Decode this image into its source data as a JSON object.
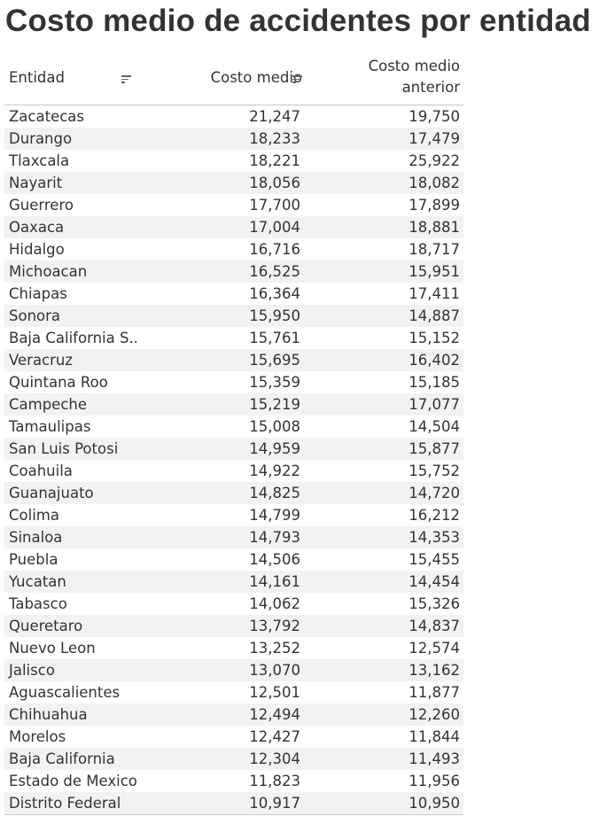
{
  "title": "Costo medio de accidentes por entidad",
  "chart_data": {
    "type": "table",
    "title": "Costo medio de accidentes por entidad",
    "columns": [
      "Entidad",
      "Costo medio",
      "Costo medio anterior"
    ],
    "sorted_by": "Costo medio",
    "sort_order": "descending",
    "rows": [
      {
        "entidad": "Zacatecas",
        "costo_medio": "21,247",
        "costo_anterior": "19,750"
      },
      {
        "entidad": "Durango",
        "costo_medio": "18,233",
        "costo_anterior": "17,479"
      },
      {
        "entidad": "Tlaxcala",
        "costo_medio": "18,221",
        "costo_anterior": "25,922"
      },
      {
        "entidad": "Nayarit",
        "costo_medio": "18,056",
        "costo_anterior": "18,082"
      },
      {
        "entidad": "Guerrero",
        "costo_medio": "17,700",
        "costo_anterior": "17,899"
      },
      {
        "entidad": "Oaxaca",
        "costo_medio": "17,004",
        "costo_anterior": "18,881"
      },
      {
        "entidad": "Hidalgo",
        "costo_medio": "16,716",
        "costo_anterior": "18,717"
      },
      {
        "entidad": "Michoacan",
        "costo_medio": "16,525",
        "costo_anterior": "15,951"
      },
      {
        "entidad": "Chiapas",
        "costo_medio": "16,364",
        "costo_anterior": "17,411"
      },
      {
        "entidad": "Sonora",
        "costo_medio": "15,950",
        "costo_anterior": "14,887"
      },
      {
        "entidad": "Baja California S..",
        "costo_medio": "15,761",
        "costo_anterior": "15,152"
      },
      {
        "entidad": "Veracruz",
        "costo_medio": "15,695",
        "costo_anterior": "16,402"
      },
      {
        "entidad": "Quintana Roo",
        "costo_medio": "15,359",
        "costo_anterior": "15,185"
      },
      {
        "entidad": "Campeche",
        "costo_medio": "15,219",
        "costo_anterior": "17,077"
      },
      {
        "entidad": "Tamaulipas",
        "costo_medio": "15,008",
        "costo_anterior": "14,504"
      },
      {
        "entidad": "San Luis Potosi",
        "costo_medio": "14,959",
        "costo_anterior": "15,877"
      },
      {
        "entidad": "Coahuila",
        "costo_medio": "14,922",
        "costo_anterior": "15,752"
      },
      {
        "entidad": "Guanajuato",
        "costo_medio": "14,825",
        "costo_anterior": "14,720"
      },
      {
        "entidad": "Colima",
        "costo_medio": "14,799",
        "costo_anterior": "16,212"
      },
      {
        "entidad": "Sinaloa",
        "costo_medio": "14,793",
        "costo_anterior": "14,353"
      },
      {
        "entidad": "Puebla",
        "costo_medio": "14,506",
        "costo_anterior": "15,455"
      },
      {
        "entidad": "Yucatan",
        "costo_medio": "14,161",
        "costo_anterior": "14,454"
      },
      {
        "entidad": "Tabasco",
        "costo_medio": "14,062",
        "costo_anterior": "15,326"
      },
      {
        "entidad": "Queretaro",
        "costo_medio": "13,792",
        "costo_anterior": "14,837"
      },
      {
        "entidad": "Nuevo Leon",
        "costo_medio": "13,252",
        "costo_anterior": "12,574"
      },
      {
        "entidad": "Jalisco",
        "costo_medio": "13,070",
        "costo_anterior": "13,162"
      },
      {
        "entidad": "Aguascalientes",
        "costo_medio": "12,501",
        "costo_anterior": "11,877"
      },
      {
        "entidad": "Chihuahua",
        "costo_medio": "12,494",
        "costo_anterior": "12,260"
      },
      {
        "entidad": "Morelos",
        "costo_medio": "12,427",
        "costo_anterior": "11,844"
      },
      {
        "entidad": "Baja California",
        "costo_medio": "12,304",
        "costo_anterior": "11,493"
      },
      {
        "entidad": "Estado de Mexico",
        "costo_medio": "11,823",
        "costo_anterior": "11,956"
      },
      {
        "entidad": "Distrito Federal",
        "costo_medio": "10,917",
        "costo_anterior": "10,950"
      }
    ]
  },
  "colors": {
    "text": "#333333",
    "band": "#f2f2f2",
    "rule": "#c8c8c8",
    "icon": "#666666"
  },
  "icons": {
    "sort_entidad": "sort-icon",
    "sort_costo": "sort-icon"
  }
}
